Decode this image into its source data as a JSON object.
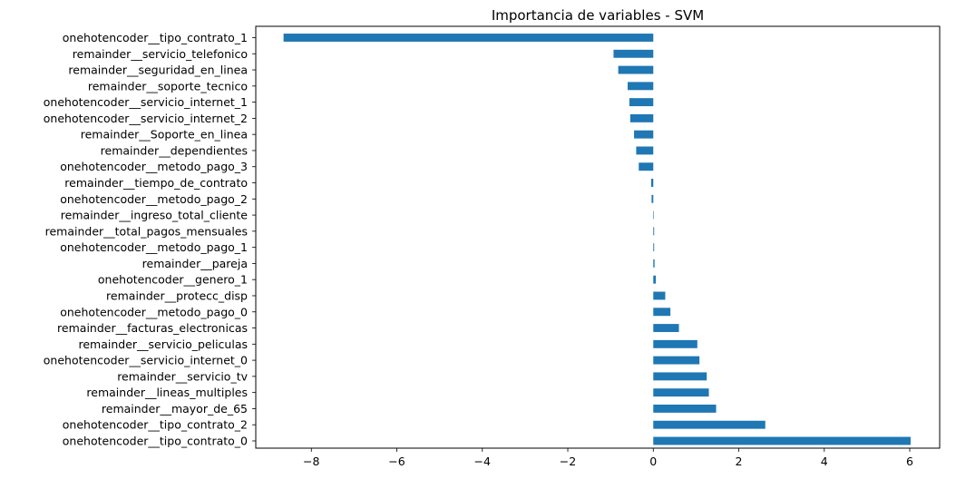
{
  "chart_data": {
    "type": "bar",
    "orientation": "horizontal",
    "title": "Importancia de variables - SVM",
    "xlabel": "",
    "ylabel": "",
    "xlim": [
      -9.3,
      6.7
    ],
    "xticks": [
      -8,
      -6,
      -4,
      -2,
      0,
      2,
      4,
      6
    ],
    "xtick_labels": [
      "−8",
      "−6",
      "−4",
      "−2",
      "0",
      "2",
      "4",
      "6"
    ],
    "grid": false,
    "bar_color": "#1f77b4",
    "categories": [
      "onehotencoder__tipo_contrato_1",
      "remainder__servicio_telefonico",
      "remainder__seguridad_en_linea",
      "remainder__soporte_tecnico",
      "onehotencoder__servicio_internet_1",
      "onehotencoder__servicio_internet_2",
      "remainder__Soporte_en_linea",
      "remainder__dependientes",
      "onehotencoder__metodo_pago_3",
      "remainder__tiempo_de_contrato",
      "onehotencoder__metodo_pago_2",
      "remainder__ingreso_total_cliente",
      "remainder__total_pagos_mensuales",
      "onehotencoder__metodo_pago_1",
      "remainder__pareja",
      "onehotencoder__genero_1",
      "remainder__protecc_disp",
      "onehotencoder__metodo_pago_0",
      "remainder__facturas_electronicas",
      "remainder__servicio_peliculas",
      "onehotencoder__servicio_internet_0",
      "remainder__servicio_tv",
      "remainder__lineas_multiples",
      "remainder__mayor_de_65",
      "onehotencoder__tipo_contrato_2",
      "onehotencoder__tipo_contrato_0"
    ],
    "values": [
      -8.65,
      -0.93,
      -0.82,
      -0.6,
      -0.56,
      -0.54,
      -0.45,
      -0.4,
      -0.34,
      -0.05,
      -0.04,
      -0.001,
      0.02,
      0.02,
      0.03,
      0.06,
      0.28,
      0.4,
      0.6,
      1.03,
      1.08,
      1.25,
      1.3,
      1.47,
      2.62,
      6.02
    ]
  }
}
